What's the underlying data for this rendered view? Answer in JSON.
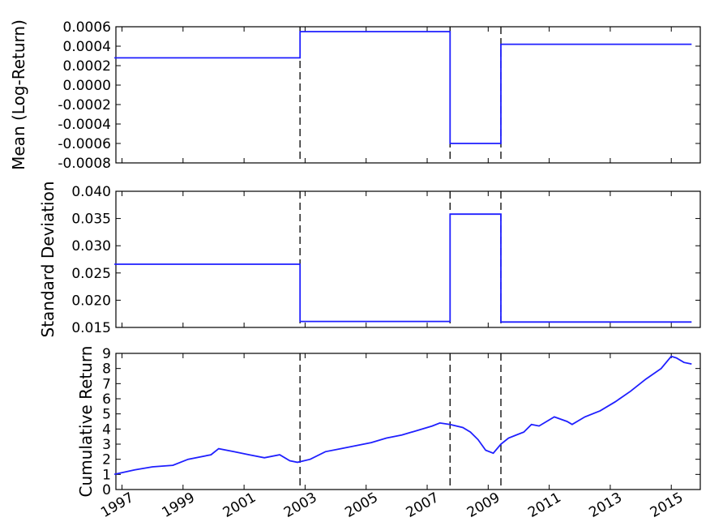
{
  "chart_data": [
    {
      "type": "line",
      "ylabel": "Mean (Log-Return)",
      "ylim": [
        -0.0008,
        0.0006
      ],
      "yticks": [
        "0.0006",
        "0.0004",
        "0.0002",
        "0.0000",
        "-0.0002",
        "-0.0004",
        "-0.0006",
        "-0.0008"
      ],
      "x": [
        "1996-10",
        "2002-11",
        "2002-11",
        "2007-10",
        "2007-10",
        "2009-06",
        "2009-06",
        "2015-09"
      ],
      "values": [
        0.00028,
        0.00028,
        0.00055,
        0.00055,
        -0.0006,
        -0.0006,
        0.00042,
        0.00042
      ],
      "color": "#1f1fff"
    },
    {
      "type": "line",
      "ylabel": "Standard Deviation",
      "ylim": [
        0.015,
        0.04
      ],
      "yticks": [
        "0.040",
        "0.035",
        "0.030",
        "0.025",
        "0.020",
        "0.015"
      ],
      "x": [
        "1996-10",
        "2002-11",
        "2002-11",
        "2007-10",
        "2007-10",
        "2009-06",
        "2009-06",
        "2015-09"
      ],
      "values": [
        0.0266,
        0.0266,
        0.0161,
        0.0161,
        0.0358,
        0.0358,
        0.016,
        0.016
      ],
      "color": "#1f1fff"
    },
    {
      "type": "line",
      "ylabel": "Cumulative Return",
      "ylim": [
        0,
        9
      ],
      "yticks": [
        "9",
        "8",
        "7",
        "6",
        "5",
        "4",
        "3",
        "2",
        "1",
        "0"
      ],
      "xticks": [
        "1997",
        "1999",
        "2001",
        "2003",
        "2005",
        "2007",
        "2009",
        "2011",
        "2013",
        "2015"
      ],
      "x": [
        "1996-10",
        "1997-06",
        "1998-01",
        "1998-09",
        "1999-03",
        "1999-12",
        "2000-03",
        "2000-09",
        "2001-03",
        "2001-09",
        "2002-03",
        "2002-07",
        "2002-10",
        "2003-03",
        "2003-09",
        "2004-03",
        "2004-09",
        "2005-03",
        "2005-09",
        "2006-03",
        "2006-09",
        "2007-03",
        "2007-06",
        "2007-10",
        "2008-03",
        "2008-06",
        "2008-09",
        "2008-12",
        "2009-03",
        "2009-06",
        "2009-09",
        "2010-03",
        "2010-06",
        "2010-09",
        "2011-03",
        "2011-08",
        "2011-10",
        "2012-03",
        "2012-09",
        "2013-03",
        "2013-09",
        "2014-03",
        "2014-09",
        "2015-01",
        "2015-03",
        "2015-06",
        "2015-09"
      ],
      "values": [
        1.0,
        1.3,
        1.5,
        1.6,
        2.0,
        2.3,
        2.7,
        2.5,
        2.3,
        2.1,
        2.3,
        1.9,
        1.8,
        2.0,
        2.5,
        2.7,
        2.9,
        3.1,
        3.4,
        3.6,
        3.9,
        4.2,
        4.4,
        4.3,
        4.1,
        3.8,
        3.3,
        2.6,
        2.4,
        3.0,
        3.4,
        3.8,
        4.3,
        4.2,
        4.8,
        4.5,
        4.3,
        4.8,
        5.2,
        5.8,
        6.5,
        7.3,
        8.0,
        8.8,
        8.7,
        8.4,
        8.3
      ],
      "color": "#1f1fff"
    }
  ],
  "change_points": [
    "2002-11",
    "2007-10",
    "2009-06"
  ]
}
